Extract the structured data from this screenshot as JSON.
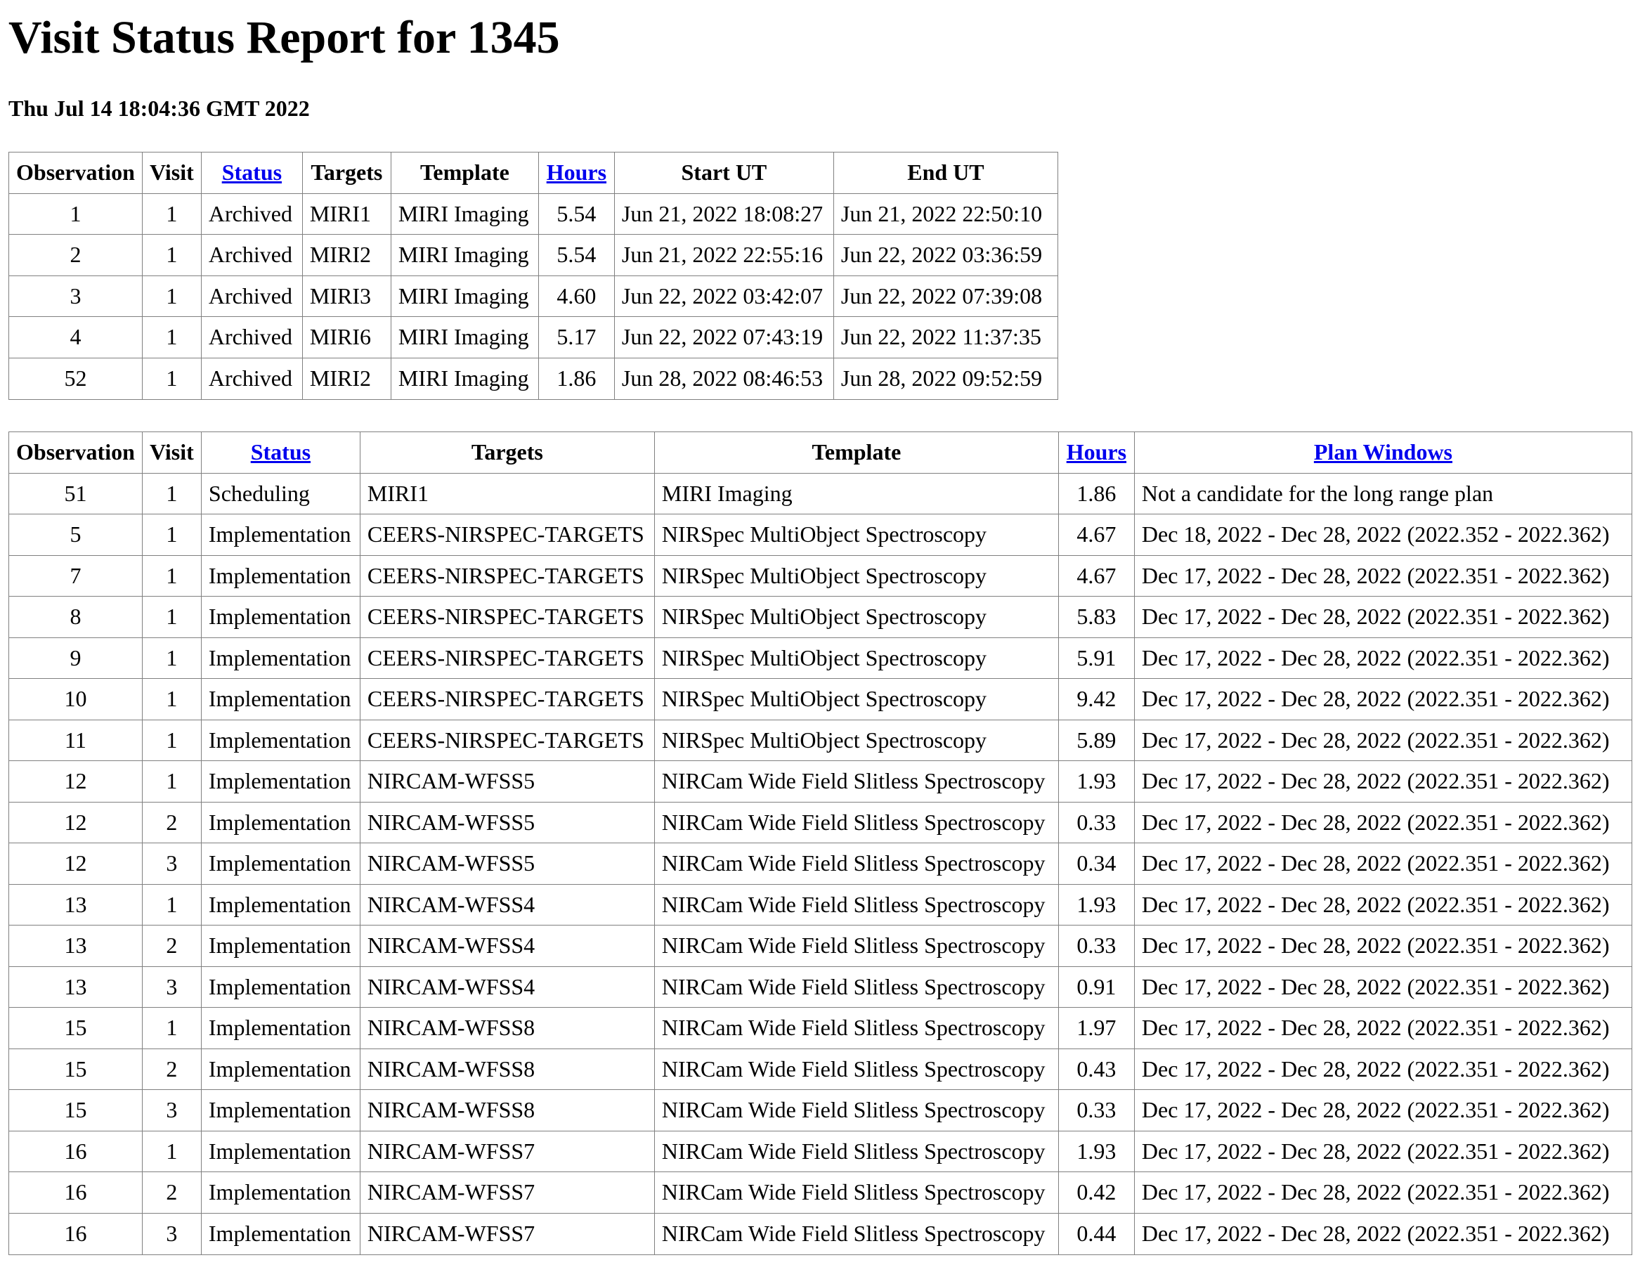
{
  "page": {
    "title": "Visit Status Report for 1345",
    "timestamp": "Thu Jul 14 18:04:36 GMT 2022"
  },
  "colors": {
    "link": "#0000ee",
    "border": "#808080",
    "text": "#000000",
    "background": "#ffffff"
  },
  "archived_table": {
    "headers": {
      "observation": "Observation",
      "visit": "Visit",
      "status": "Status",
      "targets": "Targets",
      "template": "Template",
      "hours": "Hours",
      "start_ut": "Start UT",
      "end_ut": "End UT"
    },
    "rows": [
      {
        "observation": "1",
        "visit": "1",
        "status": "Archived",
        "targets": "MIRI1",
        "template": "MIRI Imaging",
        "hours": "5.54",
        "start_ut": "Jun 21, 2022 18:08:27",
        "end_ut": "Jun 21, 2022 22:50:10"
      },
      {
        "observation": "2",
        "visit": "1",
        "status": "Archived",
        "targets": "MIRI2",
        "template": "MIRI Imaging",
        "hours": "5.54",
        "start_ut": "Jun 21, 2022 22:55:16",
        "end_ut": "Jun 22, 2022 03:36:59"
      },
      {
        "observation": "3",
        "visit": "1",
        "status": "Archived",
        "targets": "MIRI3",
        "template": "MIRI Imaging",
        "hours": "4.60",
        "start_ut": "Jun 22, 2022 03:42:07",
        "end_ut": "Jun 22, 2022 07:39:08"
      },
      {
        "observation": "4",
        "visit": "1",
        "status": "Archived",
        "targets": "MIRI6",
        "template": "MIRI Imaging",
        "hours": "5.17",
        "start_ut": "Jun 22, 2022 07:43:19",
        "end_ut": "Jun 22, 2022 11:37:35"
      },
      {
        "observation": "52",
        "visit": "1",
        "status": "Archived",
        "targets": "MIRI2",
        "template": "MIRI Imaging",
        "hours": "1.86",
        "start_ut": "Jun 28, 2022 08:46:53",
        "end_ut": "Jun 28, 2022 09:52:59"
      }
    ]
  },
  "pending_table": {
    "headers": {
      "observation": "Observation",
      "visit": "Visit",
      "status": "Status",
      "targets": "Targets",
      "template": "Template",
      "hours": "Hours",
      "plan_windows": "Plan Windows"
    },
    "rows": [
      {
        "observation": "51",
        "visit": "1",
        "status": "Scheduling",
        "targets": "MIRI1",
        "template": "MIRI Imaging",
        "hours": "1.86",
        "plan_windows": "Not a candidate for the long range plan"
      },
      {
        "observation": "5",
        "visit": "1",
        "status": "Implementation",
        "targets": "CEERS-NIRSPEC-TARGETS",
        "template": "NIRSpec MultiObject Spectroscopy",
        "hours": "4.67",
        "plan_windows": "Dec 18, 2022 - Dec 28, 2022 (2022.352 - 2022.362)"
      },
      {
        "observation": "7",
        "visit": "1",
        "status": "Implementation",
        "targets": "CEERS-NIRSPEC-TARGETS",
        "template": "NIRSpec MultiObject Spectroscopy",
        "hours": "4.67",
        "plan_windows": "Dec 17, 2022 - Dec 28, 2022 (2022.351 - 2022.362)"
      },
      {
        "observation": "8",
        "visit": "1",
        "status": "Implementation",
        "targets": "CEERS-NIRSPEC-TARGETS",
        "template": "NIRSpec MultiObject Spectroscopy",
        "hours": "5.83",
        "plan_windows": "Dec 17, 2022 - Dec 28, 2022 (2022.351 - 2022.362)"
      },
      {
        "observation": "9",
        "visit": "1",
        "status": "Implementation",
        "targets": "CEERS-NIRSPEC-TARGETS",
        "template": "NIRSpec MultiObject Spectroscopy",
        "hours": "5.91",
        "plan_windows": "Dec 17, 2022 - Dec 28, 2022 (2022.351 - 2022.362)"
      },
      {
        "observation": "10",
        "visit": "1",
        "status": "Implementation",
        "targets": "CEERS-NIRSPEC-TARGETS",
        "template": "NIRSpec MultiObject Spectroscopy",
        "hours": "9.42",
        "plan_windows": "Dec 17, 2022 - Dec 28, 2022 (2022.351 - 2022.362)"
      },
      {
        "observation": "11",
        "visit": "1",
        "status": "Implementation",
        "targets": "CEERS-NIRSPEC-TARGETS",
        "template": "NIRSpec MultiObject Spectroscopy",
        "hours": "5.89",
        "plan_windows": "Dec 17, 2022 - Dec 28, 2022 (2022.351 - 2022.362)"
      },
      {
        "observation": "12",
        "visit": "1",
        "status": "Implementation",
        "targets": "NIRCAM-WFSS5",
        "template": "NIRCam Wide Field Slitless Spectroscopy",
        "hours": "1.93",
        "plan_windows": "Dec 17, 2022 - Dec 28, 2022 (2022.351 - 2022.362)"
      },
      {
        "observation": "12",
        "visit": "2",
        "status": "Implementation",
        "targets": "NIRCAM-WFSS5",
        "template": "NIRCam Wide Field Slitless Spectroscopy",
        "hours": "0.33",
        "plan_windows": "Dec 17, 2022 - Dec 28, 2022 (2022.351 - 2022.362)"
      },
      {
        "observation": "12",
        "visit": "3",
        "status": "Implementation",
        "targets": "NIRCAM-WFSS5",
        "template": "NIRCam Wide Field Slitless Spectroscopy",
        "hours": "0.34",
        "plan_windows": "Dec 17, 2022 - Dec 28, 2022 (2022.351 - 2022.362)"
      },
      {
        "observation": "13",
        "visit": "1",
        "status": "Implementation",
        "targets": "NIRCAM-WFSS4",
        "template": "NIRCam Wide Field Slitless Spectroscopy",
        "hours": "1.93",
        "plan_windows": "Dec 17, 2022 - Dec 28, 2022 (2022.351 - 2022.362)"
      },
      {
        "observation": "13",
        "visit": "2",
        "status": "Implementation",
        "targets": "NIRCAM-WFSS4",
        "template": "NIRCam Wide Field Slitless Spectroscopy",
        "hours": "0.33",
        "plan_windows": "Dec 17, 2022 - Dec 28, 2022 (2022.351 - 2022.362)"
      },
      {
        "observation": "13",
        "visit": "3",
        "status": "Implementation",
        "targets": "NIRCAM-WFSS4",
        "template": "NIRCam Wide Field Slitless Spectroscopy",
        "hours": "0.91",
        "plan_windows": "Dec 17, 2022 - Dec 28, 2022 (2022.351 - 2022.362)"
      },
      {
        "observation": "15",
        "visit": "1",
        "status": "Implementation",
        "targets": "NIRCAM-WFSS8",
        "template": "NIRCam Wide Field Slitless Spectroscopy",
        "hours": "1.97",
        "plan_windows": "Dec 17, 2022 - Dec 28, 2022 (2022.351 - 2022.362)"
      },
      {
        "observation": "15",
        "visit": "2",
        "status": "Implementation",
        "targets": "NIRCAM-WFSS8",
        "template": "NIRCam Wide Field Slitless Spectroscopy",
        "hours": "0.43",
        "plan_windows": "Dec 17, 2022 - Dec 28, 2022 (2022.351 - 2022.362)"
      },
      {
        "observation": "15",
        "visit": "3",
        "status": "Implementation",
        "targets": "NIRCAM-WFSS8",
        "template": "NIRCam Wide Field Slitless Spectroscopy",
        "hours": "0.33",
        "plan_windows": "Dec 17, 2022 - Dec 28, 2022 (2022.351 - 2022.362)"
      },
      {
        "observation": "16",
        "visit": "1",
        "status": "Implementation",
        "targets": "NIRCAM-WFSS7",
        "template": "NIRCam Wide Field Slitless Spectroscopy",
        "hours": "1.93",
        "plan_windows": "Dec 17, 2022 - Dec 28, 2022 (2022.351 - 2022.362)"
      },
      {
        "observation": "16",
        "visit": "2",
        "status": "Implementation",
        "targets": "NIRCAM-WFSS7",
        "template": "NIRCam Wide Field Slitless Spectroscopy",
        "hours": "0.42",
        "plan_windows": "Dec 17, 2022 - Dec 28, 2022 (2022.351 - 2022.362)"
      },
      {
        "observation": "16",
        "visit": "3",
        "status": "Implementation",
        "targets": "NIRCAM-WFSS7",
        "template": "NIRCam Wide Field Slitless Spectroscopy",
        "hours": "0.44",
        "plan_windows": "Dec 17, 2022 - Dec 28, 2022 (2022.351 - 2022.362)"
      }
    ]
  }
}
